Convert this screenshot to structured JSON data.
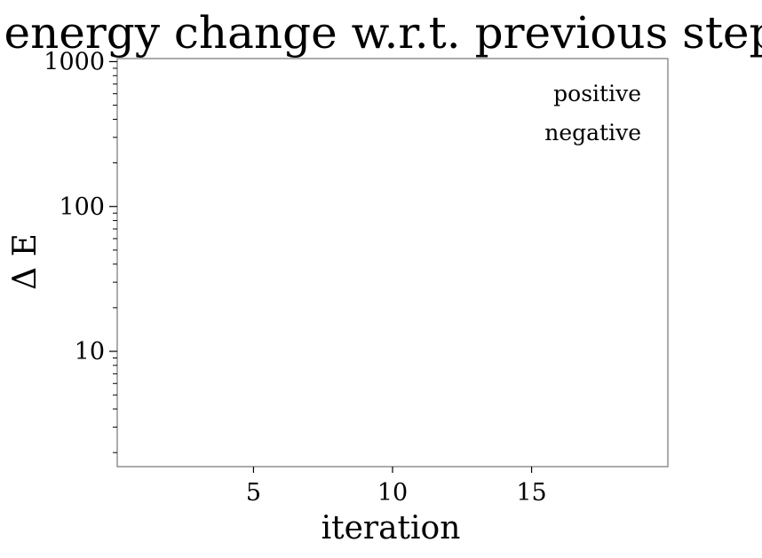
{
  "chart_data": {
    "type": "scatter",
    "title": "energy change w.r.t. previous step",
    "xlabel": "iteration",
    "ylabel": "Δ E",
    "xlim": [
      0.1,
      19.9
    ],
    "ylim": [
      1.6,
      1050
    ],
    "y_scale": "log",
    "grid": false,
    "x_ticks": [
      5,
      10,
      15
    ],
    "x_tick_labels": [
      "5",
      "10",
      "15"
    ],
    "y_ticks": [
      10,
      100,
      1000
    ],
    "y_tick_labels": [
      "10",
      "100",
      "1000"
    ],
    "legend_placement": "top-right",
    "legend_frame": false,
    "series": [
      {
        "name": "positive",
        "x": [],
        "y": []
      },
      {
        "name": "negative",
        "x": [],
        "y": []
      }
    ]
  }
}
